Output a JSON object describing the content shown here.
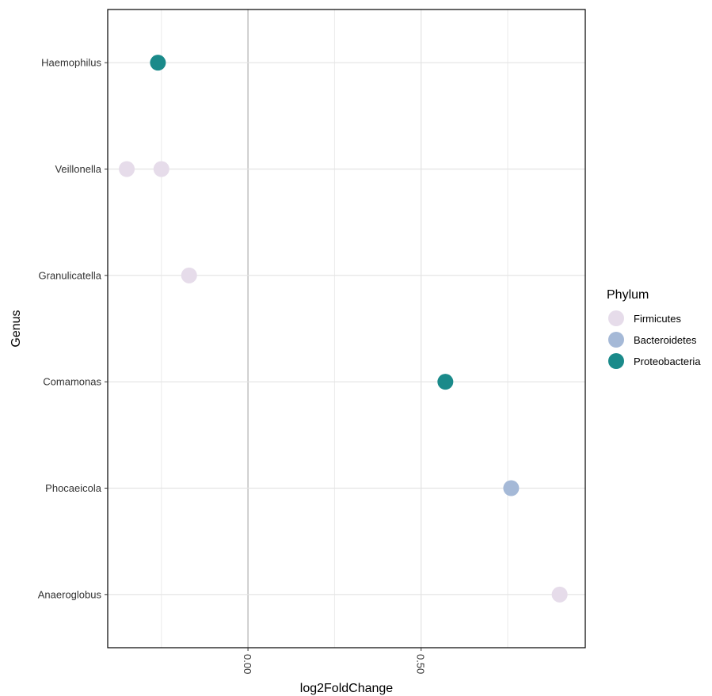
{
  "chart_data": {
    "type": "scatter",
    "xlabel": "log2FoldChange",
    "ylabel": "Genus",
    "xlim": [
      -0.405,
      0.974
    ],
    "x_ticks": [
      0.0,
      0.5
    ],
    "x_tick_labels": [
      "0.00",
      "0.50"
    ],
    "categories": [
      "Haemophilus",
      "Veillonella",
      "Granulicatella",
      "Comamonas",
      "Phocaeicola",
      "Anaeroglobus"
    ],
    "grid": true,
    "legend": {
      "title": "Phylum",
      "position": "right",
      "entries": [
        {
          "name": "Firmicutes",
          "color": "#e6dcea"
        },
        {
          "name": "Bacteroidetes",
          "color": "#a5b9d7"
        },
        {
          "name": "Proteobacteria",
          "color": "#1a8a8a"
        }
      ]
    },
    "points": [
      {
        "genus": "Haemophilus",
        "x": -0.26,
        "phylum": "Proteobacteria"
      },
      {
        "genus": "Veillonella",
        "x": -0.35,
        "phylum": "Firmicutes"
      },
      {
        "genus": "Veillonella",
        "x": -0.25,
        "phylum": "Firmicutes"
      },
      {
        "genus": "Granulicatella",
        "x": -0.17,
        "phylum": "Firmicutes"
      },
      {
        "genus": "Comamonas",
        "x": 0.57,
        "phylum": "Proteobacteria"
      },
      {
        "genus": "Phocaeicola",
        "x": 0.76,
        "phylum": "Bacteroidetes"
      },
      {
        "genus": "Anaeroglobus",
        "x": 0.9,
        "phylum": "Firmicutes"
      }
    ]
  }
}
